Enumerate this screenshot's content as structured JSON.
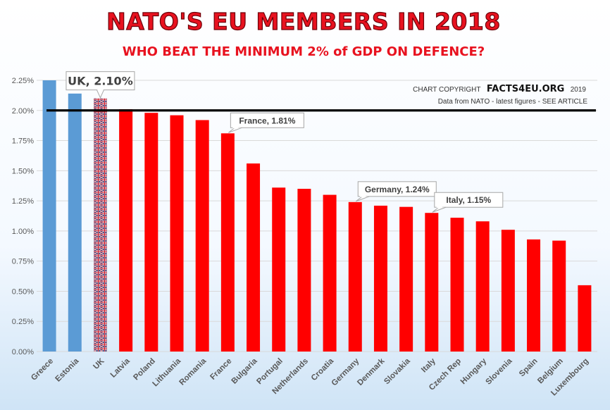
{
  "chart_data": {
    "type": "bar",
    "title": "NATO'S EU MEMBERS IN 2018",
    "subtitle": "WHO BEAT THE MINIMUM 2% of GDP ON DEFENCE?",
    "categories": [
      "Greece",
      "Estonia",
      "UK",
      "Latvia",
      "Poland",
      "Lithuania",
      "Romania",
      "France",
      "Bulgaria",
      "Portugal",
      "Netherlands",
      "Croatia",
      "Germany",
      "Denmark",
      "Slovakia",
      "Italy",
      "Czech Rep",
      "Hungary",
      "Slovenia",
      "Spain",
      "Belgium",
      "Luxembourg"
    ],
    "values": [
      2.25,
      2.14,
      2.1,
      2.01,
      1.98,
      1.96,
      1.92,
      1.81,
      1.56,
      1.36,
      1.35,
      1.3,
      1.24,
      1.21,
      1.2,
      1.15,
      1.11,
      1.08,
      1.01,
      0.93,
      0.92,
      0.55
    ],
    "bar_styles": [
      "blue",
      "blue",
      "uk-flag",
      "red",
      "red",
      "red",
      "red",
      "red",
      "red",
      "red",
      "red",
      "red",
      "red",
      "red",
      "red",
      "red",
      "red",
      "red",
      "red",
      "red",
      "red",
      "red"
    ],
    "ylim": [
      0,
      2.25
    ],
    "yticks": [
      "0.00%",
      "0.25%",
      "0.50%",
      "0.75%",
      "1.00%",
      "1.25%",
      "1.50%",
      "1.75%",
      "2.00%",
      "2.25%"
    ],
    "threshold": 2.0,
    "grid": true,
    "colors": {
      "blue": "#5b9bd5",
      "red": "#ff0000",
      "title": "#e8121f",
      "threshold": "#000000",
      "gridline": "#d9d9d9"
    },
    "annotations": [
      {
        "text": "UK, 2.10%",
        "category": "UK",
        "style": "large"
      },
      {
        "text": "France, 1.81%",
        "category": "France",
        "style": "small"
      },
      {
        "text": "Germany, 1.24%",
        "category": "Germany",
        "style": "small"
      },
      {
        "text": "Italy, 1.15%",
        "category": "Italy",
        "style": "small"
      }
    ],
    "copyright": {
      "prefix": "CHART COPYRIGHT",
      "brand": "FACTS4EU.ORG",
      "year": "2019",
      "source": "Data from NATO - latest figures - SEE ARTICLE"
    }
  }
}
